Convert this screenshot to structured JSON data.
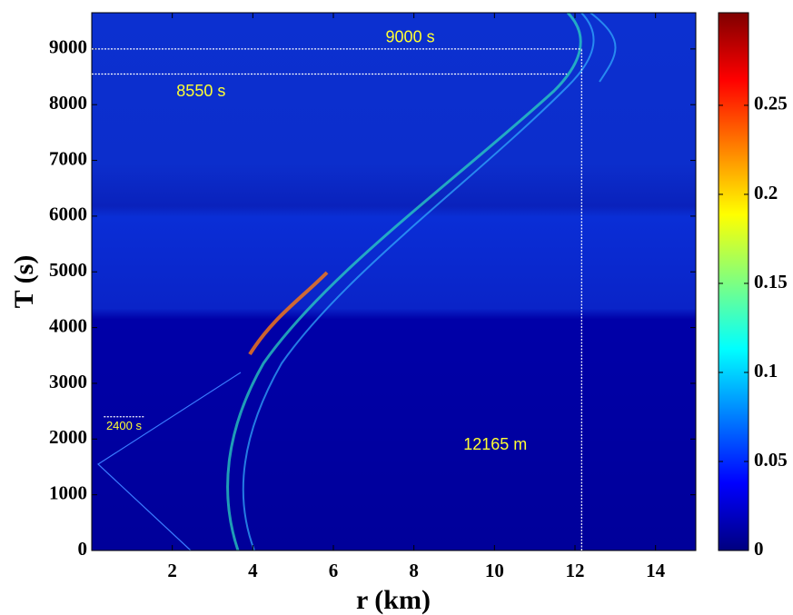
{
  "chart_data": {
    "type": "heatmap",
    "colormap": "jet",
    "x_label": "r (km)",
    "y_label": "T (s)",
    "xlim": [
      0,
      15
    ],
    "xticks": [
      2,
      4,
      6,
      8,
      10,
      12,
      14
    ],
    "ylim": [
      0,
      9650
    ],
    "yticks": [
      0,
      1000,
      2000,
      3000,
      4000,
      5000,
      6000,
      7000,
      8000,
      9000
    ],
    "clim": [
      0,
      0.302
    ],
    "cticks": [
      0,
      0.05,
      0.1,
      0.15,
      0.2,
      0.25
    ],
    "reference_lines": [
      {
        "orientation": "horizontal",
        "value": 9000,
        "from": 0,
        "to": 12.165,
        "label": "9000 s"
      },
      {
        "orientation": "horizontal",
        "value": 8550,
        "from": 0,
        "to": 11.8,
        "label": "8550 s"
      },
      {
        "orientation": "horizontal",
        "value": 2400,
        "from": 0.3,
        "to": 1.3,
        "label": "2400 s"
      },
      {
        "orientation": "vertical",
        "value": 12.165,
        "from": 0,
        "to": 9000,
        "label": "12165 m"
      }
    ]
  }
}
